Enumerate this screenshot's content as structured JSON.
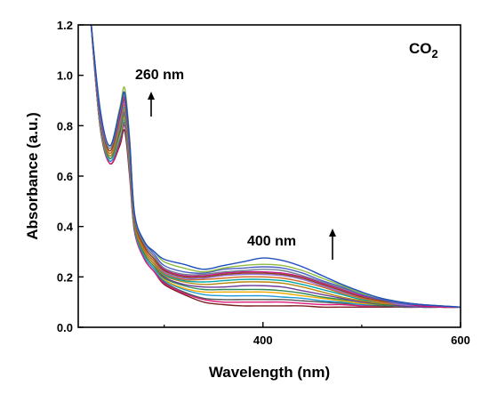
{
  "chart_data": {
    "type": "line",
    "xlabel": "Wavelength (nm)",
    "ylabel": "Absorbance (a.u.)",
    "xlim": [
      213,
      600
    ],
    "ylim": [
      0.0,
      1.2
    ],
    "x_ticks": [
      400,
      600
    ],
    "x_tick_labels": [
      "400",
      "600"
    ],
    "y_ticks": [
      0.0,
      0.2,
      0.4,
      0.6,
      0.8,
      1.0,
      1.2
    ],
    "y_tick_labels": [
      "0.0",
      "0.2",
      "0.4",
      "0.6",
      "0.8",
      "1.0",
      "1.2"
    ],
    "grid": false,
    "legend": "none",
    "annotations": {
      "label_260": "260 nm",
      "label_400": "400 nm",
      "gas_main": "CO",
      "gas_sub": "2"
    },
    "x": [
      225,
      235,
      245,
      255,
      260,
      265,
      270,
      280,
      290,
      300,
      320,
      340,
      360,
      380,
      400,
      420,
      440,
      460,
      480,
      500,
      520,
      540,
      560,
      580,
      600
    ],
    "series": [
      {
        "color": "#7a1f1f",
        "values": [
          1.25,
          0.8,
          0.65,
          0.72,
          0.78,
          0.6,
          0.38,
          0.27,
          0.22,
          0.17,
          0.13,
          0.1,
          0.09,
          0.085,
          0.085,
          0.085,
          0.085,
          0.08,
          0.08,
          0.08,
          0.08,
          0.08,
          0.08,
          0.08,
          0.08
        ]
      },
      {
        "color": "#e0197d",
        "values": [
          1.25,
          0.8,
          0.65,
          0.73,
          0.8,
          0.61,
          0.38,
          0.27,
          0.22,
          0.175,
          0.135,
          0.11,
          0.1,
          0.1,
          0.1,
          0.1,
          0.095,
          0.09,
          0.09,
          0.085,
          0.085,
          0.08,
          0.08,
          0.08,
          0.08
        ]
      },
      {
        "color": "#555555",
        "values": [
          1.25,
          0.8,
          0.66,
          0.74,
          0.81,
          0.62,
          0.39,
          0.28,
          0.23,
          0.18,
          0.14,
          0.115,
          0.11,
          0.11,
          0.11,
          0.11,
          0.105,
          0.1,
          0.095,
          0.09,
          0.085,
          0.08,
          0.08,
          0.08,
          0.08
        ]
      },
      {
        "color": "#1e9bd7",
        "values": [
          1.25,
          0.81,
          0.66,
          0.75,
          0.82,
          0.63,
          0.39,
          0.28,
          0.23,
          0.185,
          0.15,
          0.13,
          0.125,
          0.125,
          0.125,
          0.12,
          0.115,
          0.105,
          0.1,
          0.09,
          0.09,
          0.085,
          0.08,
          0.08,
          0.08
        ]
      },
      {
        "color": "#f2a900",
        "values": [
          1.25,
          0.81,
          0.67,
          0.76,
          0.83,
          0.64,
          0.4,
          0.29,
          0.24,
          0.19,
          0.155,
          0.14,
          0.14,
          0.14,
          0.14,
          0.135,
          0.125,
          0.115,
          0.105,
          0.095,
          0.09,
          0.085,
          0.08,
          0.08,
          0.08
        ]
      },
      {
        "color": "#2e8b57",
        "values": [
          1.25,
          0.82,
          0.67,
          0.77,
          0.84,
          0.65,
          0.4,
          0.29,
          0.24,
          0.195,
          0.165,
          0.15,
          0.15,
          0.15,
          0.15,
          0.145,
          0.135,
          0.12,
          0.11,
          0.1,
          0.09,
          0.085,
          0.08,
          0.08,
          0.08
        ]
      },
      {
        "color": "#6a3d9a",
        "values": [
          1.25,
          0.82,
          0.68,
          0.78,
          0.85,
          0.66,
          0.41,
          0.3,
          0.25,
          0.2,
          0.17,
          0.16,
          0.16,
          0.165,
          0.165,
          0.16,
          0.145,
          0.13,
          0.115,
          0.1,
          0.095,
          0.085,
          0.08,
          0.08,
          0.08
        ]
      },
      {
        "color": "#b8860b",
        "values": [
          1.25,
          0.83,
          0.68,
          0.79,
          0.86,
          0.67,
          0.41,
          0.3,
          0.25,
          0.205,
          0.18,
          0.17,
          0.175,
          0.18,
          0.18,
          0.175,
          0.16,
          0.14,
          0.12,
          0.105,
          0.095,
          0.09,
          0.085,
          0.08,
          0.08
        ]
      },
      {
        "color": "#00a6a6",
        "values": [
          1.25,
          0.83,
          0.69,
          0.8,
          0.87,
          0.68,
          0.42,
          0.31,
          0.26,
          0.21,
          0.185,
          0.18,
          0.185,
          0.19,
          0.19,
          0.185,
          0.17,
          0.15,
          0.13,
          0.11,
          0.1,
          0.09,
          0.085,
          0.08,
          0.08
        ]
      },
      {
        "color": "#d2691e",
        "values": [
          1.25,
          0.84,
          0.69,
          0.81,
          0.88,
          0.69,
          0.42,
          0.31,
          0.26,
          0.215,
          0.19,
          0.19,
          0.195,
          0.2,
          0.2,
          0.195,
          0.18,
          0.16,
          0.135,
          0.115,
          0.1,
          0.09,
          0.085,
          0.08,
          0.08
        ]
      },
      {
        "color": "#9370db",
        "values": [
          1.25,
          0.84,
          0.7,
          0.82,
          0.89,
          0.7,
          0.43,
          0.32,
          0.27,
          0.22,
          0.195,
          0.195,
          0.205,
          0.21,
          0.21,
          0.205,
          0.19,
          0.165,
          0.14,
          0.12,
          0.105,
          0.09,
          0.085,
          0.08,
          0.08
        ]
      },
      {
        "color": "#8b4513",
        "values": [
          1.25,
          0.85,
          0.7,
          0.83,
          0.9,
          0.71,
          0.43,
          0.32,
          0.27,
          0.225,
          0.2,
          0.2,
          0.21,
          0.215,
          0.215,
          0.21,
          0.195,
          0.17,
          0.145,
          0.12,
          0.105,
          0.095,
          0.085,
          0.08,
          0.08
        ]
      },
      {
        "color": "#c71585",
        "values": [
          1.25,
          0.85,
          0.71,
          0.84,
          0.91,
          0.72,
          0.44,
          0.33,
          0.28,
          0.23,
          0.205,
          0.205,
          0.215,
          0.22,
          0.22,
          0.215,
          0.2,
          0.175,
          0.15,
          0.125,
          0.11,
          0.095,
          0.085,
          0.08,
          0.08
        ]
      },
      {
        "color": "#708090",
        "values": [
          1.25,
          0.86,
          0.71,
          0.85,
          0.92,
          0.73,
          0.44,
          0.33,
          0.28,
          0.235,
          0.21,
          0.21,
          0.22,
          0.225,
          0.23,
          0.225,
          0.205,
          0.18,
          0.155,
          0.13,
          0.11,
          0.095,
          0.09,
          0.085,
          0.08
        ]
      },
      {
        "color": "#4b5fc4",
        "values": [
          1.25,
          0.86,
          0.72,
          0.86,
          0.93,
          0.74,
          0.45,
          0.34,
          0.29,
          0.245,
          0.22,
          0.215,
          0.23,
          0.235,
          0.24,
          0.235,
          0.215,
          0.185,
          0.16,
          0.13,
          0.11,
          0.095,
          0.09,
          0.085,
          0.08
        ]
      },
      {
        "color": "#8fbc3f",
        "values": [
          1.25,
          0.87,
          0.72,
          0.87,
          0.95,
          0.75,
          0.45,
          0.34,
          0.3,
          0.26,
          0.235,
          0.22,
          0.235,
          0.245,
          0.25,
          0.245,
          0.225,
          0.195,
          0.165,
          0.135,
          0.115,
          0.1,
          0.09,
          0.085,
          0.08
        ]
      },
      {
        "color": "#1f4fbf",
        "values": [
          1.25,
          0.87,
          0.72,
          0.86,
          0.93,
          0.74,
          0.45,
          0.34,
          0.3,
          0.27,
          0.25,
          0.23,
          0.245,
          0.26,
          0.275,
          0.265,
          0.24,
          0.205,
          0.17,
          0.14,
          0.115,
          0.1,
          0.09,
          0.085,
          0.08
        ]
      }
    ]
  }
}
